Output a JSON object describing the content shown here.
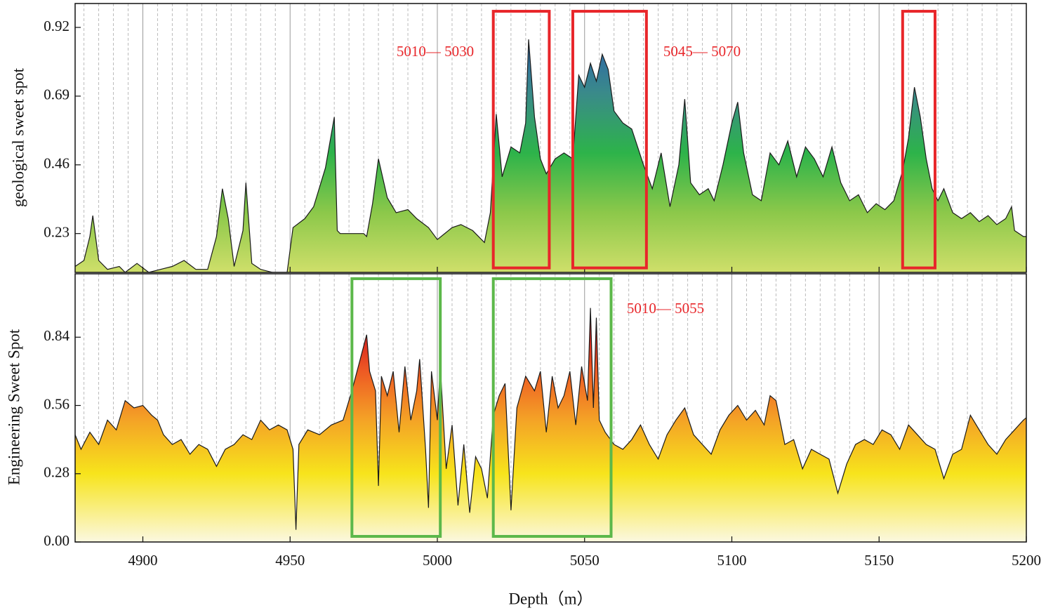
{
  "chart_data": [
    {
      "type": "area",
      "ylabel": "geological sweet spot",
      "xlim": [
        4877,
        5200
      ],
      "xticks": [
        4900,
        4950,
        5000,
        5050,
        5100,
        5150,
        5200
      ],
      "show_xtick_labels": false,
      "ylim": [
        0.1,
        1.0
      ],
      "yticks": [
        0.23,
        0.46,
        0.69,
        0.92
      ],
      "grid": true,
      "gradient": [
        {
          "value": 0.1,
          "color": "#cfdf6a"
        },
        {
          "value": 0.3,
          "color": "#8cc84a"
        },
        {
          "value": 0.5,
          "color": "#2db34a"
        },
        {
          "value": 0.7,
          "color": "#3a8a8a"
        },
        {
          "value": 0.9,
          "color": "#2b5fae"
        }
      ],
      "x": [
        4877,
        4880,
        4882,
        4883,
        4885,
        4888,
        4892,
        4894,
        4898,
        4902,
        4906,
        4910,
        4914,
        4918,
        4922,
        4925,
        4927,
        4929,
        4931,
        4934,
        4935,
        4937,
        4940,
        4944,
        4949,
        4951,
        4955,
        4958,
        4962,
        4965,
        4966,
        4967,
        4975,
        4976,
        4978,
        4980,
        4983,
        4986,
        4990,
        4993,
        4997,
        5000,
        5005,
        5008,
        5012,
        5016,
        5018,
        5020,
        5022,
        5025,
        5028,
        5030,
        5031,
        5033,
        5035,
        5037,
        5040,
        5043,
        5046,
        5048,
        5050,
        5052,
        5054,
        5056,
        5058,
        5060,
        5063,
        5066,
        5068,
        5070,
        5073,
        5076,
        5079,
        5082,
        5084,
        5086,
        5089,
        5092,
        5094,
        5097,
        5100,
        5102,
        5104,
        5107,
        5110,
        5113,
        5116,
        5119,
        5122,
        5125,
        5128,
        5131,
        5134,
        5137,
        5140,
        5143,
        5146,
        5149,
        5152,
        5155,
        5158,
        5160,
        5162,
        5164,
        5166,
        5168,
        5170,
        5172,
        5175,
        5178,
        5181,
        5184,
        5187,
        5190,
        5193,
        5195,
        5196,
        5199,
        5200
      ],
      "series": [
        {
          "color": "#1a1a1a",
          "values": [
            0.12,
            0.14,
            0.22,
            0.29,
            0.14,
            0.11,
            0.12,
            0.1,
            0.13,
            0.1,
            0.11,
            0.12,
            0.14,
            0.11,
            0.11,
            0.22,
            0.38,
            0.28,
            0.12,
            0.24,
            0.4,
            0.13,
            0.11,
            0.1,
            0.1,
            0.25,
            0.28,
            0.32,
            0.45,
            0.62,
            0.24,
            0.23,
            0.23,
            0.22,
            0.33,
            0.48,
            0.35,
            0.3,
            0.31,
            0.28,
            0.25,
            0.21,
            0.25,
            0.26,
            0.24,
            0.2,
            0.3,
            0.63,
            0.42,
            0.52,
            0.5,
            0.6,
            0.88,
            0.62,
            0.48,
            0.43,
            0.48,
            0.5,
            0.48,
            0.76,
            0.72,
            0.8,
            0.74,
            0.83,
            0.78,
            0.64,
            0.6,
            0.58,
            0.52,
            0.46,
            0.38,
            0.5,
            0.32,
            0.46,
            0.68,
            0.4,
            0.36,
            0.38,
            0.34,
            0.46,
            0.6,
            0.67,
            0.5,
            0.36,
            0.34,
            0.5,
            0.46,
            0.54,
            0.42,
            0.52,
            0.48,
            0.42,
            0.52,
            0.4,
            0.34,
            0.36,
            0.3,
            0.33,
            0.31,
            0.34,
            0.44,
            0.55,
            0.72,
            0.62,
            0.48,
            0.38,
            0.34,
            0.38,
            0.3,
            0.28,
            0.3,
            0.27,
            0.29,
            0.26,
            0.28,
            0.32,
            0.24,
            0.22,
            0.22
          ]
        }
      ],
      "boxes": [
        {
          "x": [
            5019,
            5038
          ],
          "y": [
            0.115,
            0.974
          ],
          "color": "#e8262a"
        },
        {
          "x": [
            5046,
            5071
          ],
          "y": [
            0.115,
            0.974
          ],
          "color": "#e8262a"
        },
        {
          "x": [
            5158,
            5169
          ],
          "y": [
            0.115,
            0.974
          ],
          "color": "#e8262a"
        }
      ],
      "annotations": [
        {
          "text": "5010— 5030",
          "color": "#e8262a"
        },
        {
          "text": "5045— 5070",
          "color": "#e8262a"
        }
      ]
    },
    {
      "type": "area",
      "ylabel": "Engineering Sweet Spot",
      "xlabel": "Depth（m）",
      "xlim": [
        4877,
        5200
      ],
      "xticks": [
        4900,
        4950,
        5000,
        5050,
        5100,
        5150,
        5200
      ],
      "show_xtick_labels": true,
      "ylim": [
        0,
        1.1
      ],
      "yticks": [
        {
          "value": 0,
          "label": "0.00"
        },
        0.28,
        0.56,
        0.84
      ],
      "grid": true,
      "gradient": [
        {
          "value": 0,
          "color": "#fbf8e0"
        },
        {
          "value": 0.28,
          "color": "#f7e41c"
        },
        {
          "value": 0.5,
          "color": "#f4a326"
        },
        {
          "value": 0.7,
          "color": "#ee5a24"
        },
        {
          "value": 0.85,
          "color": "#d62020"
        },
        {
          "value": 1.0,
          "color": "#3a0c0c"
        }
      ],
      "x": [
        4877,
        4879,
        4882,
        4885,
        4888,
        4891,
        4894,
        4897,
        4900,
        4903,
        4905,
        4907,
        4910,
        4913,
        4916,
        4919,
        4922,
        4925,
        4928,
        4931,
        4934,
        4937,
        4940,
        4943,
        4946,
        4949,
        4951,
        4952,
        4953,
        4956,
        4960,
        4964,
        4968,
        4971,
        4976,
        4977,
        4979,
        4980,
        4981,
        4983,
        4985,
        4987,
        4989,
        4991,
        4993,
        4994,
        4996,
        4997,
        4998,
        5000,
        5001,
        5003,
        5005,
        5007,
        5009,
        5011,
        5013,
        5015,
        5017,
        5019,
        5021,
        5023,
        5025,
        5027,
        5030,
        5033,
        5035,
        5037,
        5039,
        5041,
        5043,
        5045,
        5047,
        5049,
        5051,
        5052,
        5053,
        5054,
        5055,
        5057,
        5060,
        5063,
        5066,
        5069,
        5072,
        5075,
        5078,
        5081,
        5084,
        5087,
        5090,
        5093,
        5096,
        5099,
        5102,
        5105,
        5108,
        5111,
        5113,
        5115,
        5118,
        5121,
        5124,
        5127,
        5130,
        5133,
        5136,
        5139,
        5142,
        5145,
        5148,
        5151,
        5154,
        5157,
        5160,
        5163,
        5166,
        5169,
        5172,
        5175,
        5178,
        5181,
        5184,
        5187,
        5190,
        5193,
        5196,
        5199,
        5200
      ],
      "series": [
        {
          "color": "#1a1a1a",
          "values": [
            0.44,
            0.38,
            0.45,
            0.4,
            0.5,
            0.46,
            0.58,
            0.55,
            0.56,
            0.52,
            0.5,
            0.44,
            0.4,
            0.42,
            0.36,
            0.4,
            0.38,
            0.31,
            0.38,
            0.4,
            0.44,
            0.42,
            0.5,
            0.46,
            0.48,
            0.46,
            0.38,
            0.05,
            0.4,
            0.46,
            0.44,
            0.48,
            0.5,
            0.62,
            0.85,
            0.7,
            0.62,
            0.23,
            0.68,
            0.6,
            0.7,
            0.45,
            0.72,
            0.5,
            0.62,
            0.75,
            0.38,
            0.14,
            0.7,
            0.5,
            0.72,
            0.3,
            0.48,
            0.15,
            0.4,
            0.12,
            0.35,
            0.3,
            0.18,
            0.52,
            0.6,
            0.65,
            0.13,
            0.55,
            0.68,
            0.62,
            0.7,
            0.45,
            0.68,
            0.55,
            0.6,
            0.7,
            0.48,
            0.72,
            0.58,
            0.96,
            0.55,
            0.92,
            0.5,
            0.45,
            0.4,
            0.38,
            0.42,
            0.48,
            0.4,
            0.34,
            0.44,
            0.5,
            0.55,
            0.44,
            0.4,
            0.36,
            0.46,
            0.52,
            0.56,
            0.5,
            0.54,
            0.48,
            0.6,
            0.58,
            0.4,
            0.42,
            0.3,
            0.38,
            0.36,
            0.34,
            0.2,
            0.32,
            0.4,
            0.42,
            0.4,
            0.46,
            0.44,
            0.38,
            0.48,
            0.44,
            0.4,
            0.38,
            0.26,
            0.36,
            0.38,
            0.52,
            0.46,
            0.4,
            0.36,
            0.42,
            0.46,
            0.5,
            0.51
          ]
        }
      ],
      "boxes": [
        {
          "x": [
            4971,
            5001
          ],
          "y": [
            0.023,
            1.08
          ],
          "color": "#5cb84a"
        },
        {
          "x": [
            5019,
            5059
          ],
          "y": [
            0.023,
            1.08
          ],
          "color": "#5cb84a"
        }
      ],
      "annotations": [
        {
          "text": "5010— 5055",
          "color": "#e8262a"
        }
      ]
    }
  ]
}
